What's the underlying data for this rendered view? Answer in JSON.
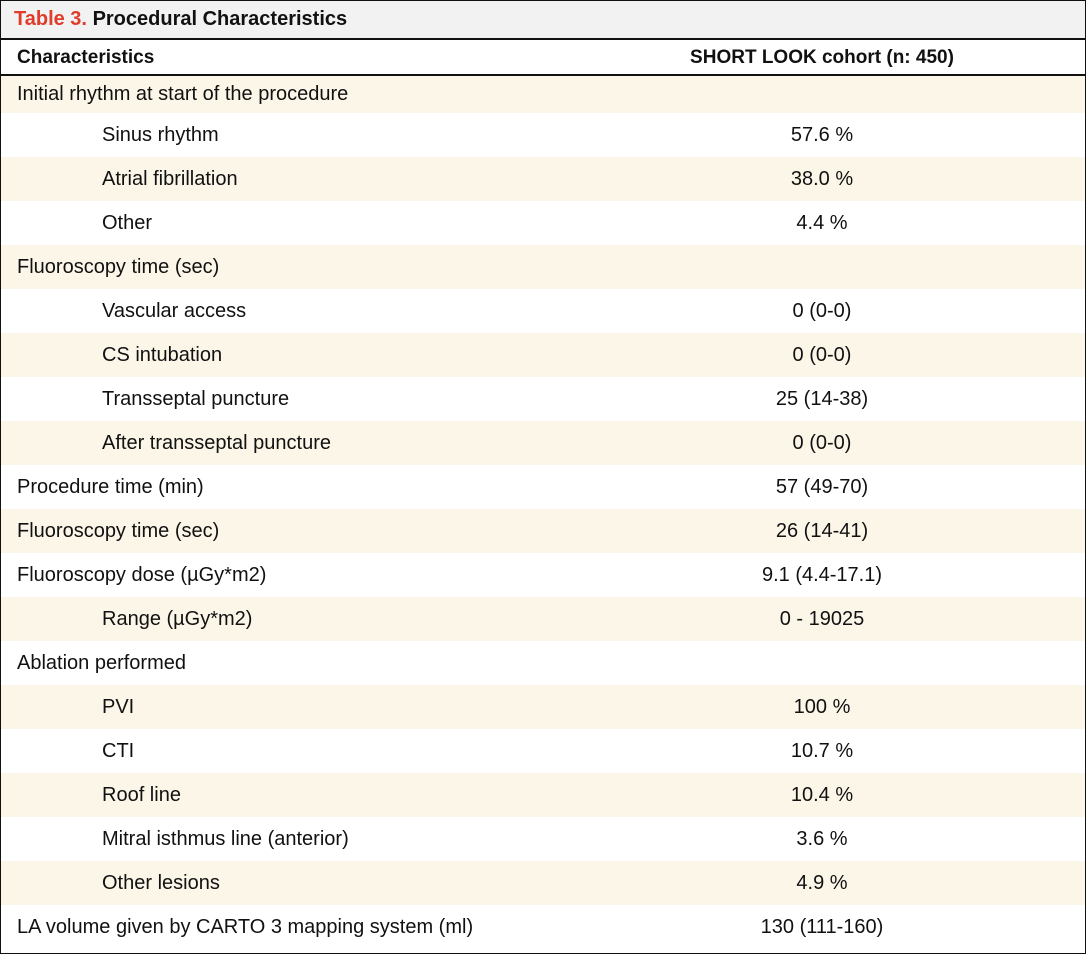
{
  "caption": {
    "label": "Table 3.",
    "title": "Procedural Characteristics"
  },
  "header": {
    "characteristics": "Characteristics",
    "cohort": "SHORT LOOK cohort (n: 450)"
  },
  "colors": {
    "caption_label": "#e03c2b",
    "row_shade": "#fcf6e9",
    "caption_bg": "#f2f2f2"
  },
  "rows": [
    {
      "label": "Initial rhythm at start of the procedure",
      "value": ""
    },
    {
      "label": "Sinus rhythm",
      "value": "57.6 %"
    },
    {
      "label": "Atrial fibrillation",
      "value": "38.0 %"
    },
    {
      "label": "Other",
      "value": "4.4 %"
    },
    {
      "label": "Fluoroscopy time (sec)",
      "value": ""
    },
    {
      "label": "Vascular access",
      "value": "0 (0-0)"
    },
    {
      "label": "CS intubation",
      "value": "0 (0-0)"
    },
    {
      "label": "Transseptal puncture",
      "value": "25 (14-38)"
    },
    {
      "label": "After transseptal puncture",
      "value": "0 (0-0)"
    },
    {
      "label": "Procedure time (min)",
      "value": "57 (49-70)"
    },
    {
      "label": "Fluoroscopy time (sec)",
      "value": "26 (14-41)"
    },
    {
      "label": "Fluoroscopy dose (µGy*m2)",
      "value": "9.1 (4.4-17.1)"
    },
    {
      "label": "Range (µGy*m2)",
      "value": "0 - 19025"
    },
    {
      "label": "Ablation performed",
      "value": ""
    },
    {
      "label": "PVI",
      "value": "100 %"
    },
    {
      "label": "CTI",
      "value": "10.7 %"
    },
    {
      "label": "Roof line",
      "value": "10.4 %"
    },
    {
      "label": "Mitral isthmus line (anterior)",
      "value": "3.6 %"
    },
    {
      "label": "Other lesions",
      "value": "4.9 %"
    },
    {
      "label": "LA volume given by CARTO 3 mapping system (ml)",
      "value": "130 (111-160)"
    }
  ]
}
